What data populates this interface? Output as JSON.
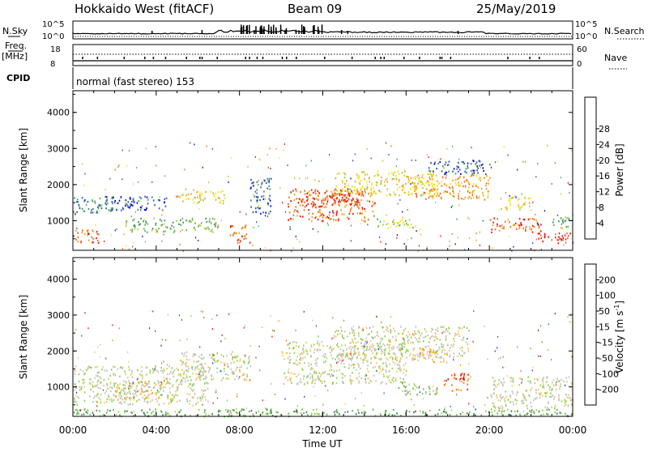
{
  "header": {
    "radar": "Hokkaido West (fitACF)",
    "beam": "Beam 09",
    "date": "25/May/2019"
  },
  "top_panel": {
    "nsky_label": "N.Sky",
    "nsky_ticks": [
      "10^5",
      "10^0"
    ],
    "nsearch_label": "N.Search",
    "nsearch_ticks": [
      "10^5",
      "10^0"
    ],
    "freq_label": "Freq.",
    "freq_unit": "[MHz]",
    "freq_ticks": [
      "18",
      "8"
    ],
    "nave_label": "Nave",
    "nave_ticks": [
      "60",
      "0"
    ],
    "cpid_label": "CPID",
    "cpid_text": "normal (fast stereo) 153"
  },
  "x_axis": {
    "label": "Time UT",
    "ticks": [
      "00:00",
      "04:00",
      "08:00",
      "12:00",
      "16:00",
      "20:00",
      "00:00"
    ]
  },
  "chart_data": [
    {
      "type": "heatmap",
      "name": "power",
      "ylabel": "Slant Range [km]",
      "yticks": [
        "1000",
        "2000",
        "3000",
        "4000"
      ],
      "ylim": [
        180,
        4600
      ],
      "xlim_hours": [
        0,
        24
      ],
      "colorbar": {
        "label": "Power [dB]",
        "ticks": [
          "4",
          "8",
          "12",
          "16",
          "20",
          "24",
          "28"
        ],
        "colors": [
          "#0000ee",
          "#2b54b4",
          "#3e8c6a",
          "#58b058",
          "#b4c83c",
          "#f2e41e",
          "#f3a015",
          "#f06a0a",
          "#ee1010"
        ]
      },
      "regions": [
        {
          "t": [
            0.0,
            2.0
          ],
          "r": [
            1200,
            1700
          ],
          "level": 2
        },
        {
          "t": [
            0.0,
            1.3
          ],
          "r": [
            400,
            800
          ],
          "level": 7
        },
        {
          "t": [
            1.5,
            4.5
          ],
          "r": [
            1300,
            1700
          ],
          "level": 1
        },
        {
          "t": [
            2.5,
            7.0
          ],
          "r": [
            700,
            1100
          ],
          "level": 3
        },
        {
          "t": [
            5.0,
            7.3
          ],
          "r": [
            1500,
            1900
          ],
          "level": 5
        },
        {
          "t": [
            7.5,
            8.5
          ],
          "r": [
            400,
            900
          ],
          "level": 7
        },
        {
          "t": [
            8.5,
            9.5
          ],
          "r": [
            1200,
            2200
          ],
          "level": 1
        },
        {
          "t": [
            10.3,
            14.5
          ],
          "r": [
            1000,
            1900
          ],
          "level": 7
        },
        {
          "t": [
            11.0,
            13.8
          ],
          "r": [
            1400,
            1800
          ],
          "level": 8
        },
        {
          "t": [
            12.5,
            17.5
          ],
          "r": [
            1700,
            2400
          ],
          "level": 5
        },
        {
          "t": [
            14.5,
            16.5
          ],
          "r": [
            800,
            1100
          ],
          "level": 4
        },
        {
          "t": [
            16.0,
            20.0
          ],
          "r": [
            1600,
            2300
          ],
          "level": 6
        },
        {
          "t": [
            17.0,
            20.0
          ],
          "r": [
            2300,
            2700
          ],
          "level": 1
        },
        {
          "t": [
            20.0,
            22.5
          ],
          "r": [
            700,
            1100
          ],
          "level": 7
        },
        {
          "t": [
            20.5,
            22.0
          ],
          "r": [
            1300,
            1700
          ],
          "level": 5
        },
        {
          "t": [
            22.0,
            24.0
          ],
          "r": [
            400,
            700
          ],
          "level": 8
        },
        {
          "t": [
            23.0,
            24.0
          ],
          "r": [
            800,
            1200
          ],
          "level": 3
        }
      ]
    },
    {
      "type": "heatmap",
      "name": "velocity",
      "ylabel": "Slant Range [km]",
      "yticks": [
        "1000",
        "2000",
        "3000",
        "4000"
      ],
      "ylim": [
        180,
        4600
      ],
      "xlim_hours": [
        0,
        24
      ],
      "colorbar": {
        "label": "Velocity [m s",
        "label_sup": "-1",
        "label_end": "]",
        "ticks": [
          "200",
          "100",
          "50",
          "15",
          "-15",
          "-50",
          "-100",
          "-200"
        ],
        "colors": [
          "#2030c0",
          "#2e7a4a",
          "#5ab04a",
          "#8ad24a",
          "#c0c0c0",
          "#f2c85a",
          "#f09a1a",
          "#f06a0a",
          "#ee1010"
        ]
      },
      "regions": [
        {
          "t": [
            0.0,
            6.5
          ],
          "r": [
            500,
            1600
          ],
          "level": 4
        },
        {
          "t": [
            0.0,
            24.0
          ],
          "r": [
            200,
            400
          ],
          "level": 2
        },
        {
          "t": [
            5.0,
            8.5
          ],
          "r": [
            1200,
            2000
          ],
          "level": 4
        },
        {
          "t": [
            10.0,
            16.0
          ],
          "r": [
            1100,
            2300
          ],
          "level": 4
        },
        {
          "t": [
            12.5,
            19.0
          ],
          "r": [
            1800,
            2700
          ],
          "level": 4
        },
        {
          "t": [
            16.0,
            18.0
          ],
          "r": [
            1700,
            2100
          ],
          "level": 5
        },
        {
          "t": [
            17.8,
            19.0
          ],
          "r": [
            900,
            1400
          ],
          "level": 7
        },
        {
          "t": [
            15.5,
            17.5
          ],
          "r": [
            800,
            1100
          ],
          "level": 3
        },
        {
          "t": [
            20.0,
            24.0
          ],
          "r": [
            400,
            1300
          ],
          "level": 4
        },
        {
          "t": [
            2.0,
            4.5
          ],
          "r": [
            700,
            1200
          ],
          "level": 5
        }
      ]
    }
  ],
  "colors": {
    "frame": "#000000",
    "background": "#ffffff"
  }
}
